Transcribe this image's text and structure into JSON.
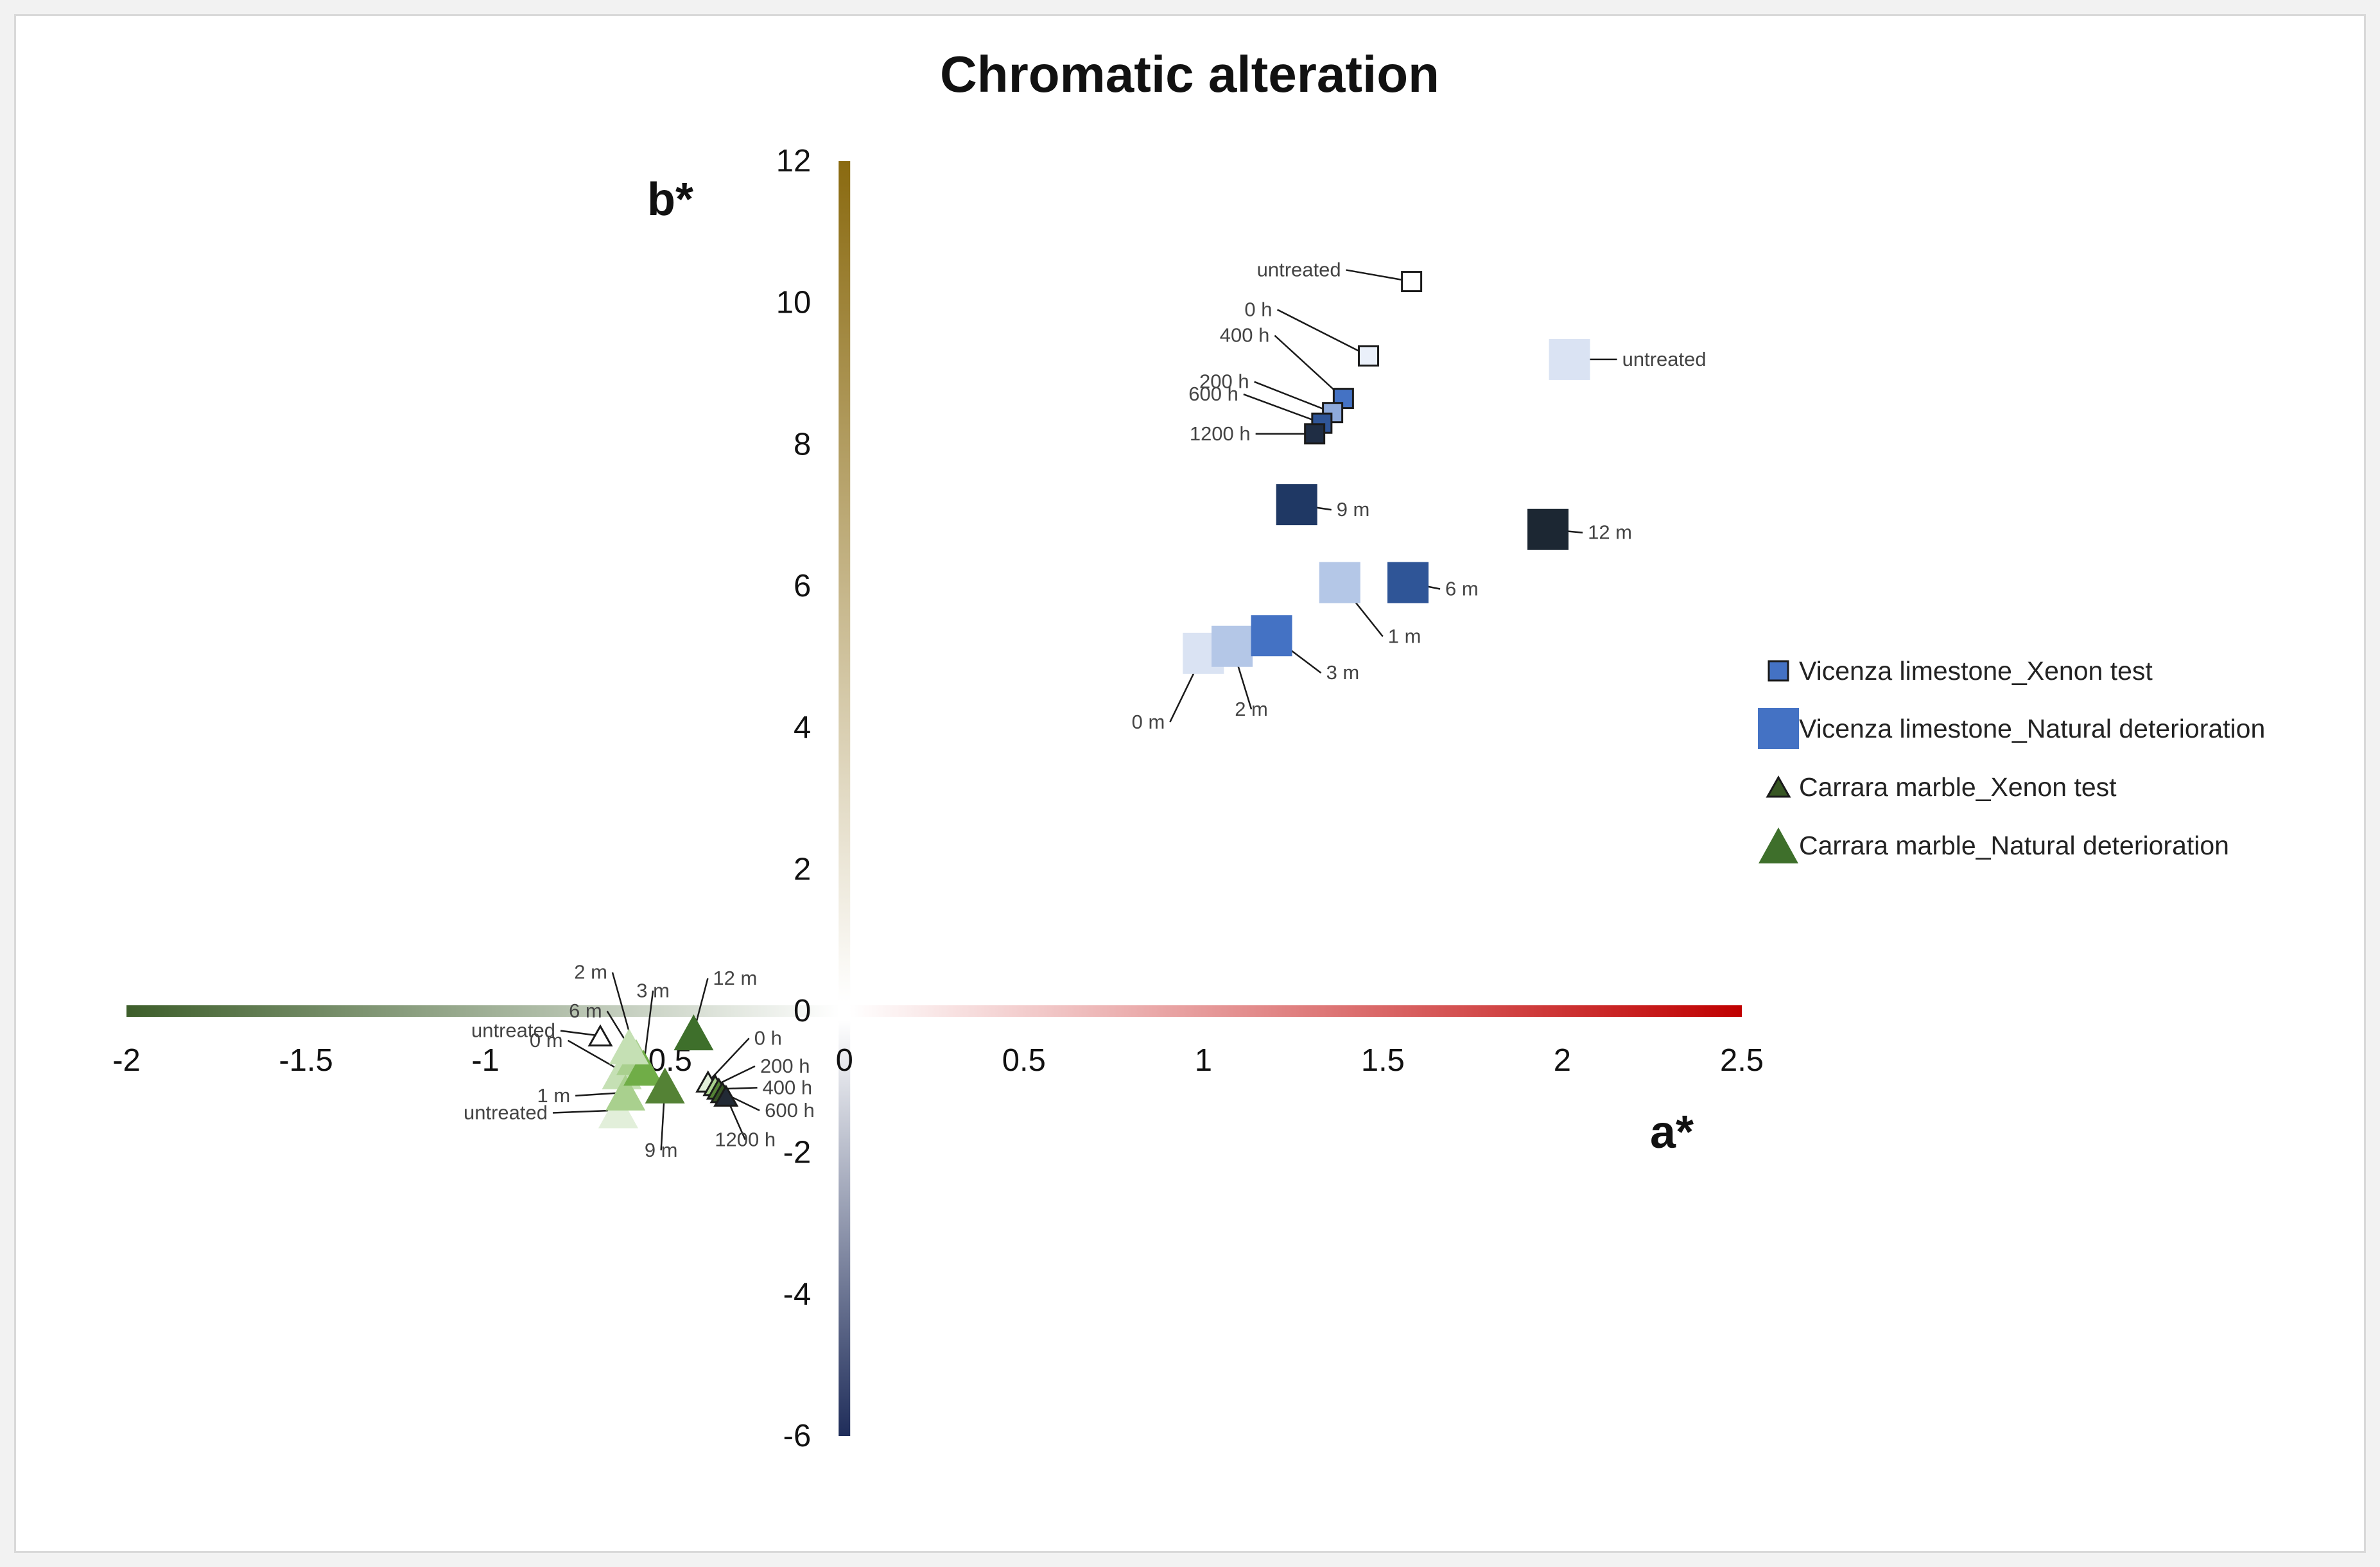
{
  "chart_data": {
    "type": "scatter",
    "title": "Chromatic alteration",
    "xlabel": "a*",
    "ylabel": "b*",
    "xlim": [
      -2,
      2.5
    ],
    "ylim": [
      -6,
      12
    ],
    "x_ticks": [
      -2,
      -1.5,
      -1,
      -0.5,
      0,
      0.5,
      1,
      1.5,
      2,
      2.5
    ],
    "x_tick_labels": [
      "-2",
      "-1.5",
      "-1",
      "-0.5",
      "0",
      "0.5",
      "1",
      "1.5",
      "2",
      "2.5"
    ],
    "y_ticks": [
      -6,
      -4,
      -2,
      0,
      2,
      4,
      6,
      8,
      10,
      12
    ],
    "y_tick_labels": [
      "-6",
      "-4",
      "-2",
      "0",
      "2",
      "4",
      "6",
      "8",
      "10",
      "12"
    ],
    "axis_colors": {
      "a_negative": "#3d5e2a",
      "a_positive": "#c00000",
      "b_positive": "#8a6a10",
      "b_negative": "#1f2d5a"
    },
    "legend_position": "right",
    "series": [
      {
        "name": "Vicenza limestone_Xenon test",
        "marker": "square-small",
        "color": "#4472c4",
        "points": [
          {
            "label": "untreated",
            "x": 1.58,
            "y": 10.3,
            "color": "#ffffff"
          },
          {
            "label": "0 h",
            "x": 1.46,
            "y": 9.25,
            "color": "#eaf0fa"
          },
          {
            "label": "400 h",
            "x": 1.39,
            "y": 8.65,
            "color": "#4472c4"
          },
          {
            "label": "200 h",
            "x": 1.36,
            "y": 8.45,
            "color": "#8eaadb"
          },
          {
            "label": "600 h",
            "x": 1.33,
            "y": 8.3,
            "color": "#2f5597"
          },
          {
            "label": "1200 h",
            "x": 1.31,
            "y": 8.15,
            "color": "#1f2d44"
          }
        ]
      },
      {
        "name": "Vicenza limestone_Natural deterioration",
        "marker": "square-large",
        "color": "#4472c4",
        "points": [
          {
            "label": "untreated",
            "x": 2.02,
            "y": 9.2,
            "color": "#dae3f3"
          },
          {
            "label": "0 m",
            "x": 1.0,
            "y": 5.05,
            "color": "#dae3f3"
          },
          {
            "label": "2 m",
            "x": 1.08,
            "y": 5.15,
            "color": "#b4c7e7"
          },
          {
            "label": "3 m",
            "x": 1.19,
            "y": 5.3,
            "color": "#4472c4"
          },
          {
            "label": "1 m",
            "x": 1.38,
            "y": 6.05,
            "color": "#b4c7e7"
          },
          {
            "label": "6 m",
            "x": 1.57,
            "y": 6.05,
            "color": "#2f5597"
          },
          {
            "label": "9 m",
            "x": 1.26,
            "y": 7.15,
            "color": "#1f3864"
          },
          {
            "label": "12 m",
            "x": 1.96,
            "y": 6.8,
            "color": "#1c2733"
          }
        ]
      },
      {
        "name": "Carrara marble_Xenon test",
        "marker": "triangle-small",
        "color": "#375623",
        "points": [
          {
            "label": "untreated",
            "x": -0.68,
            "y": -0.35,
            "color": "#ffffff"
          },
          {
            "label": "0 h",
            "x": -0.38,
            "y": -1.0,
            "color": "#e2efda"
          },
          {
            "label": "200 h",
            "x": -0.36,
            "y": -1.05,
            "color": "#a9d08e"
          },
          {
            "label": "400 h",
            "x": -0.35,
            "y": -1.1,
            "color": "#548235"
          },
          {
            "label": "600 h",
            "x": -0.34,
            "y": -1.15,
            "color": "#375623"
          },
          {
            "label": "1200 h",
            "x": -0.33,
            "y": -1.2,
            "color": "#222a35"
          }
        ]
      },
      {
        "name": "Carrara marble_Natural deterioration",
        "marker": "triangle-large",
        "color": "#3e6f2b",
        "points": [
          {
            "label": "untreated",
            "x": -0.63,
            "y": -1.4,
            "color": "#e2efda"
          },
          {
            "label": "0 m",
            "x": -0.62,
            "y": -0.85,
            "color": "#c5e0b4"
          },
          {
            "label": "1 m",
            "x": -0.61,
            "y": -1.15,
            "color": "#a9d08e"
          },
          {
            "label": "2 m",
            "x": -0.58,
            "y": -0.65,
            "color": "#a9d08e"
          },
          {
            "label": "3 m",
            "x": -0.56,
            "y": -0.8,
            "color": "#70ad47"
          },
          {
            "label": "6 m",
            "x": -0.6,
            "y": -0.5,
            "color": "#c5e0b4"
          },
          {
            "label": "9 m",
            "x": -0.5,
            "y": -1.05,
            "color": "#548235"
          },
          {
            "label": "12 m",
            "x": -0.42,
            "y": -0.3,
            "color": "#3e6f2b"
          }
        ]
      }
    ]
  }
}
